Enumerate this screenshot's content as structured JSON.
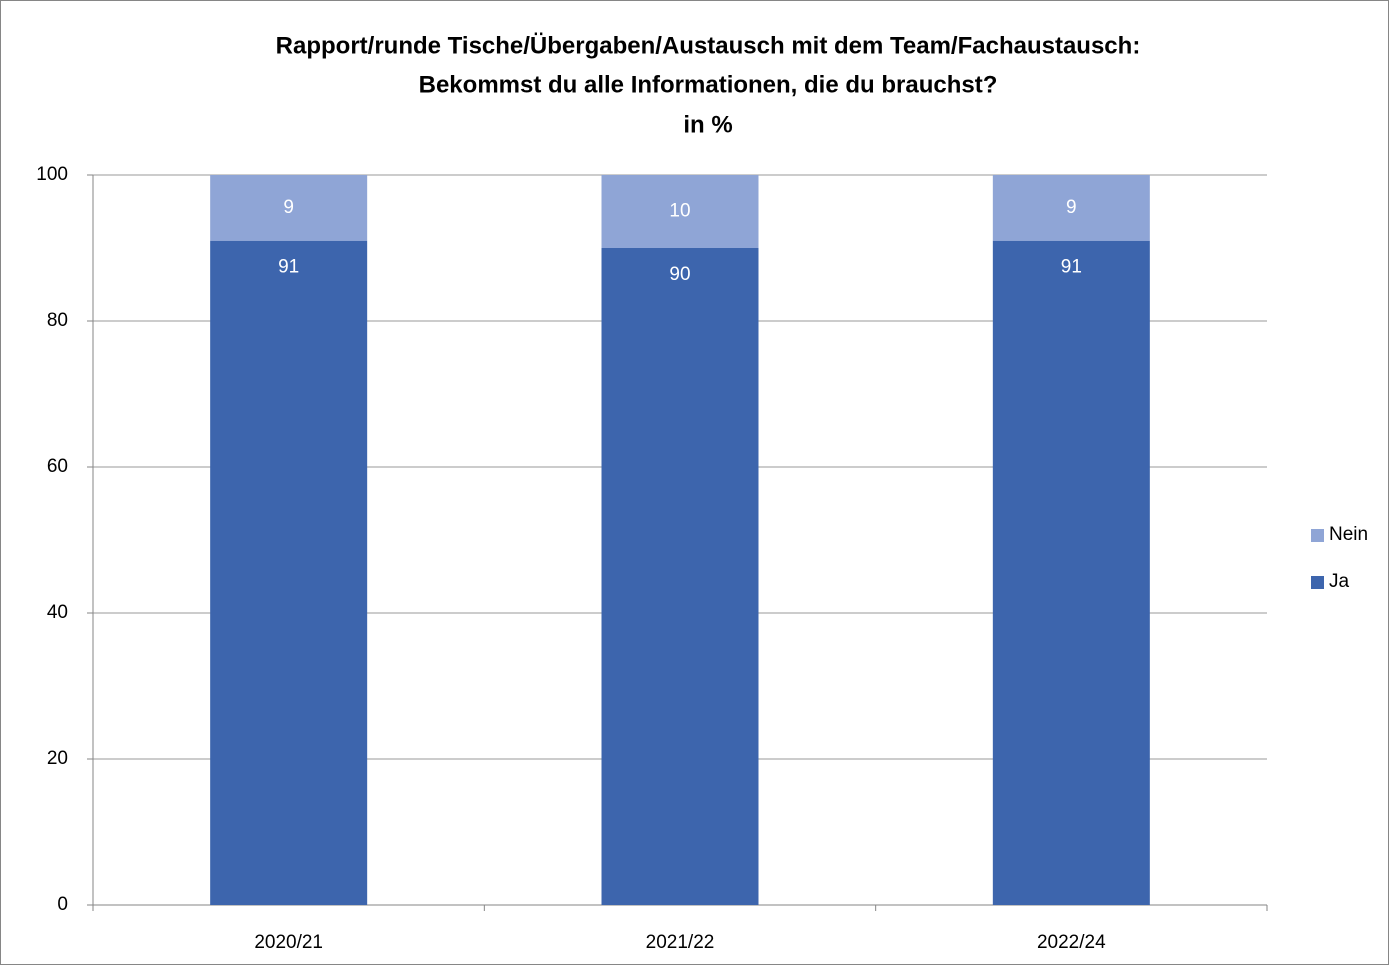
{
  "chart_data": {
    "type": "stacked_bar",
    "title": [
      "Rapport/runde Tische/Übergaben/Austausch mit dem Team/Fachaustausch:",
      "Bekommst du alle Informationen, die du brauchst?"
    ],
    "subtitle": "in %",
    "categories": [
      "2020/21",
      "2021/22",
      "2022/24"
    ],
    "series": [
      {
        "name": "Ja",
        "color": "#3d65ad",
        "values": [
          91,
          90,
          91
        ]
      },
      {
        "name": "Nein",
        "color": "#8fa5d6",
        "values": [
          9,
          10,
          9
        ]
      }
    ],
    "ylim": [
      0,
      100
    ],
    "yticks": [
      0,
      20,
      40,
      60,
      80,
      100
    ],
    "grid": true,
    "legend": "right"
  }
}
